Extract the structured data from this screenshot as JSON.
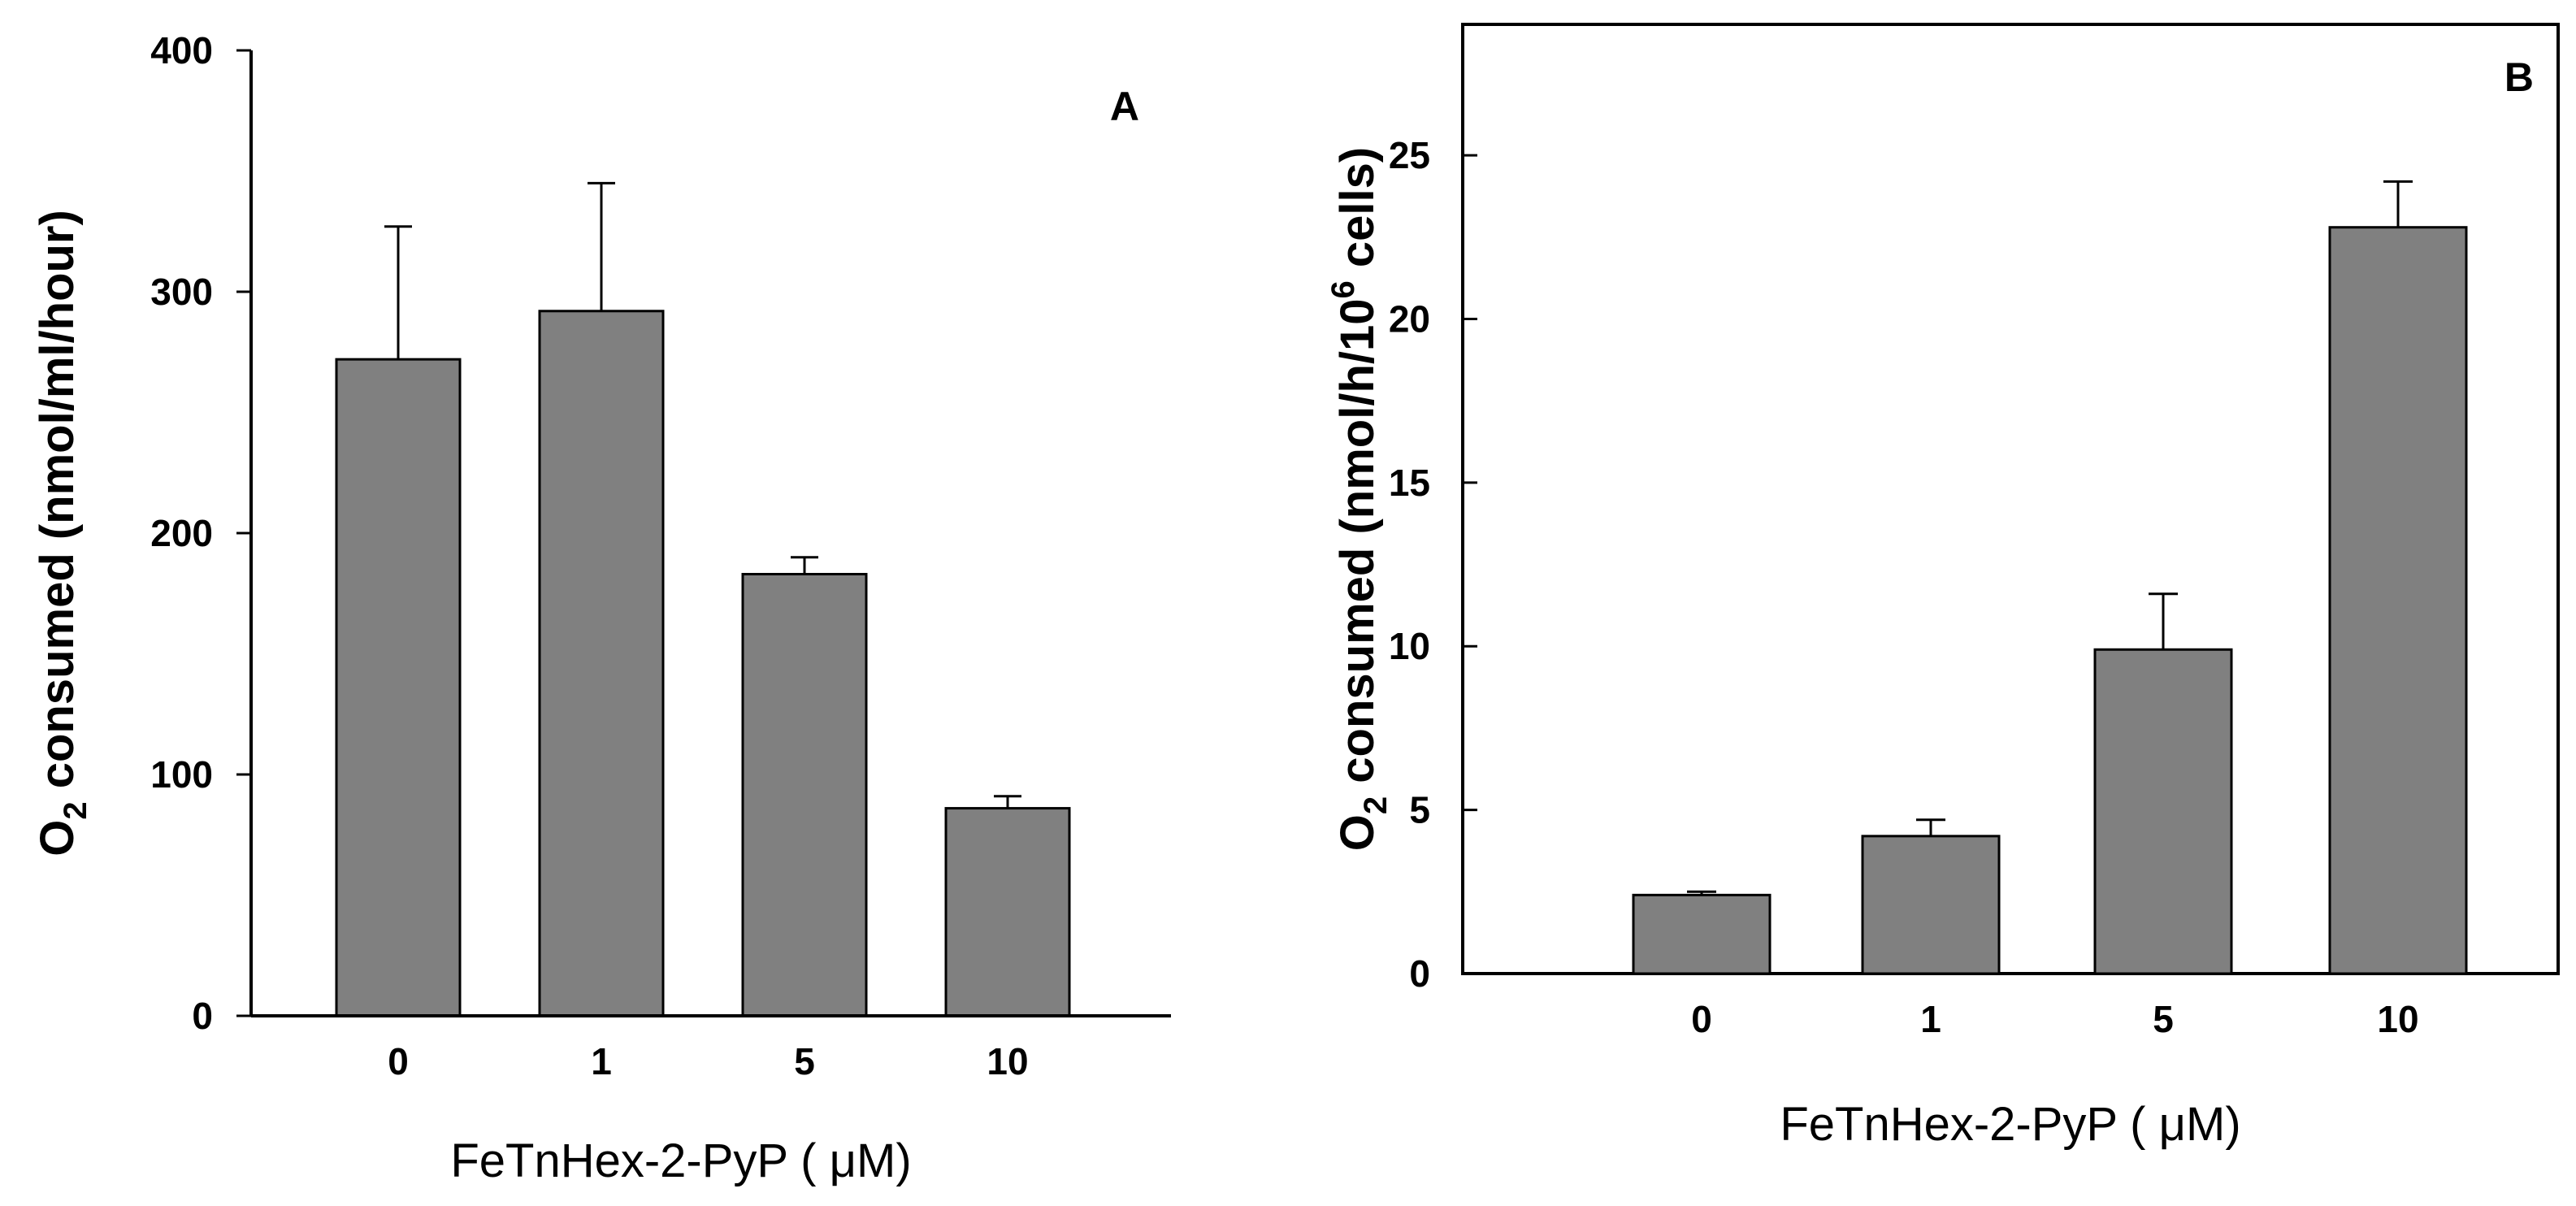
{
  "colors": {
    "bar_fill": "#808080",
    "stroke": "#000000",
    "background": "#ffffff"
  },
  "chart_data": [
    {
      "type": "bar",
      "panel_label": "A",
      "categories": [
        "0",
        "1",
        "5",
        "10"
      ],
      "values": [
        272,
        292,
        183,
        86
      ],
      "errors": [
        55,
        53,
        7,
        5
      ],
      "xlabel": "FeTnHex-2-PyP (   μM)",
      "ylabel": {
        "prefix": "O",
        "subscript": "2",
        "suffix": " consumed (nmol/ml/hour)"
      },
      "ylim": [
        0,
        400
      ],
      "yticks": [
        0,
        100,
        200,
        300,
        400
      ],
      "ytick_labels": [
        "0",
        "100",
        "200",
        "300",
        "400"
      ],
      "box": "left-bottom",
      "grid": false,
      "legend": "none"
    },
    {
      "type": "bar",
      "panel_label": "B",
      "categories": [
        "0",
        "1",
        "5",
        "10"
      ],
      "values": [
        2.4,
        4.2,
        9.9,
        22.8
      ],
      "errors": [
        0.1,
        0.5,
        1.7,
        1.4
      ],
      "xlabel": "FeTnHex-2-PyP (   μM)",
      "ylabel": {
        "prefix": "O",
        "subscript": "2",
        "suffix": " consumed (nmol/h/10",
        "superscript": "6",
        "tail": " cells)"
      },
      "ylim": [
        0,
        29
      ],
      "yticks": [
        0,
        5,
        10,
        15,
        20,
        25
      ],
      "ytick_labels": [
        "0",
        "5",
        "10",
        "15",
        "20",
        "25"
      ],
      "box": "full",
      "grid": false,
      "legend": "none"
    }
  ]
}
